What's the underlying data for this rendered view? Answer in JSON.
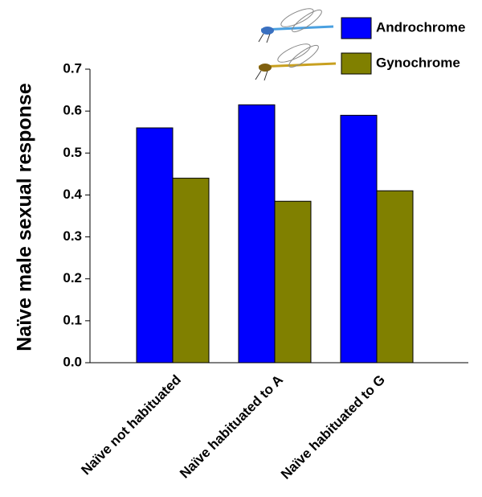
{
  "chart_data": {
    "type": "bar",
    "y_label": "Naïve male sexual response",
    "categories": [
      "Naïve not habituated",
      "Naïve habituated to A",
      "Naïve habituated to G"
    ],
    "series": [
      {
        "name": "Androchrome",
        "color": "#0000ff",
        "values": [
          0.56,
          0.615,
          0.59
        ]
      },
      {
        "name": "Gynochrome",
        "color": "#808000",
        "values": [
          0.44,
          0.385,
          0.41
        ]
      }
    ],
    "ylim": [
      0,
      0.7
    ],
    "yticks": [
      {
        "value": 0,
        "label": "0.0"
      },
      0.1,
      0.2,
      0.3,
      0.4,
      0.5,
      0.6,
      0.7
    ],
    "legend": "upper right"
  }
}
